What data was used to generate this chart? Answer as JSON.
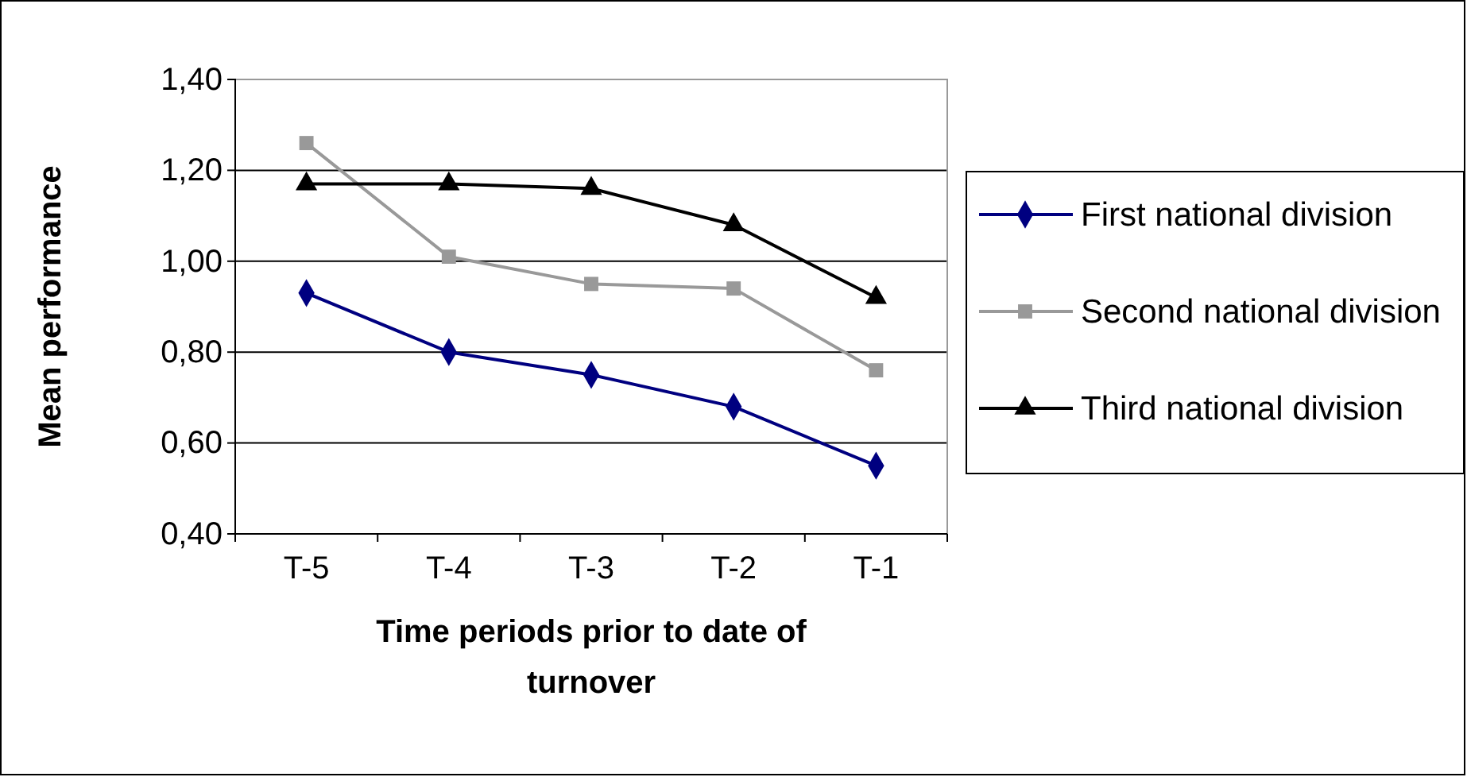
{
  "chart_data": {
    "type": "line",
    "xlabel": "Time periods prior to date of turnover",
    "ylabel": "Mean performance",
    "categories": [
      "T-5",
      "T-4",
      "T-3",
      "T-2",
      "T-1"
    ],
    "series": [
      {
        "name": "First national division",
        "color": "#000080",
        "marker": "diamond",
        "values": [
          0.93,
          0.8,
          0.75,
          0.68,
          0.55
        ]
      },
      {
        "name": "Second national division",
        "color": "#999999",
        "marker": "square",
        "values": [
          1.26,
          1.01,
          0.95,
          0.94,
          0.76
        ]
      },
      {
        "name": "Third national division",
        "color": "#000000",
        "marker": "triangle",
        "values": [
          1.17,
          1.17,
          1.16,
          1.08,
          0.92
        ]
      }
    ],
    "ylim": [
      0.4,
      1.4
    ],
    "yticks": [
      {
        "value": 0.4,
        "label": "0,40"
      },
      {
        "value": 0.6,
        "label": "0,60"
      },
      {
        "value": 0.8,
        "label": "0,80"
      },
      {
        "value": 1.0,
        "label": "1,00"
      },
      {
        "value": 1.2,
        "label": "1,20"
      },
      {
        "value": 1.4,
        "label": "1,40"
      }
    ],
    "grid": "y",
    "legend": "right"
  }
}
